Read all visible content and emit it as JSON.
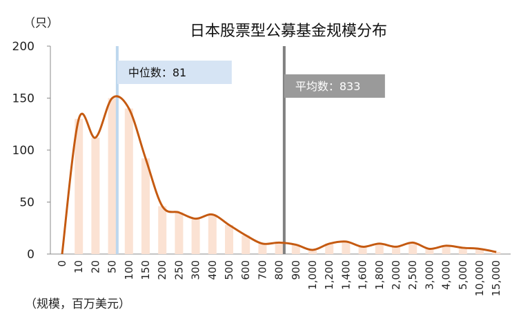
{
  "chart_data": {
    "type": "bar",
    "title": "日本股票型公募基金规模分布",
    "y_unit_label": "（只）",
    "x_unit_label": "（规模，百万美元）",
    "ylim": [
      0,
      200
    ],
    "yticks": [
      "0",
      "50",
      "100",
      "150",
      "200"
    ],
    "categories": [
      "0",
      "10",
      "20",
      "50",
      "100",
      "150",
      "200",
      "250",
      "300",
      "400",
      "500",
      "600",
      "700",
      "800",
      "900",
      "1,000",
      "1,200",
      "1,400",
      "1,600",
      "1,800",
      "2,000",
      "2,500",
      "3,000",
      "4,000",
      "5,000",
      "10,000",
      "15,000"
    ],
    "series": [
      {
        "type": "bar",
        "values": [
          0,
          130,
          112,
          150,
          140,
          92,
          46,
          40,
          34,
          38,
          28,
          18,
          10,
          11,
          9,
          4,
          10,
          12,
          7,
          10,
          7,
          11,
          5,
          8,
          6,
          5,
          2
        ]
      },
      {
        "type": "line",
        "values": [
          0,
          130,
          112,
          150,
          140,
          92,
          46,
          40,
          34,
          38,
          28,
          18,
          10,
          11,
          9,
          4,
          10,
          12,
          7,
          10,
          7,
          11,
          5,
          8,
          6,
          5,
          2
        ]
      }
    ],
    "reference_lines": [
      {
        "label": "中位数：81",
        "position_category_index": 3.3,
        "color": "#bdd7ee",
        "label_bg": "#d6e4f4",
        "label_color": "#111111"
      },
      {
        "label": "平均数：833",
        "position_category_index": 13.3,
        "color": "#808080",
        "label_bg": "#9a9a9a",
        "label_color": "#ffffff"
      }
    ],
    "colors": {
      "bar": "#fbe2d3",
      "line": "#c55a11"
    },
    "grid": false
  }
}
